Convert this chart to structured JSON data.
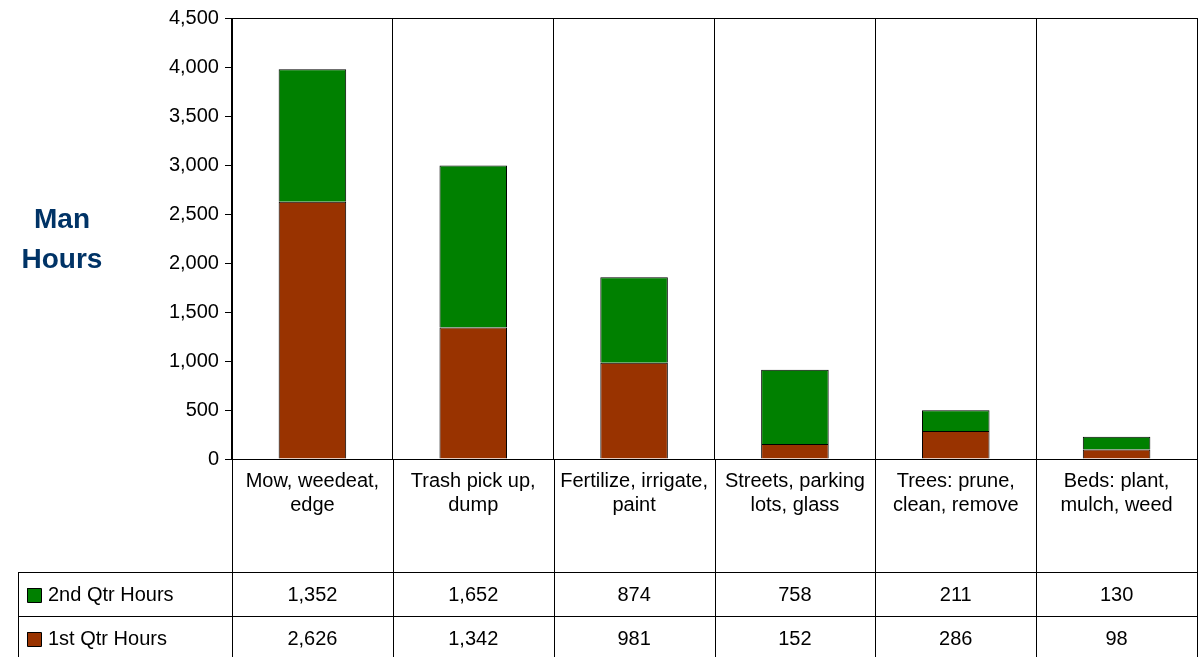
{
  "chart_data": {
    "type": "bar",
    "stacked": true,
    "ylabel": "Man Hours",
    "categories": [
      "Mow, weedeat, edge",
      "Trash pick up, dump",
      "Fertilize, irrigate, paint",
      "Streets, parking lots, glass",
      "Trees: prune, clean, remove",
      "Beds: plant, mulch, weed"
    ],
    "series": [
      {
        "name": "1st Qtr Hours",
        "color": "#993300",
        "values": [
          2626,
          1342,
          981,
          152,
          286,
          98
        ],
        "value_labels": [
          "2,626",
          "1,342",
          "981",
          "152",
          "286",
          "98"
        ]
      },
      {
        "name": "2nd Qtr Hours",
        "color": "#008000",
        "values": [
          1352,
          1652,
          874,
          758,
          211,
          130
        ],
        "value_labels": [
          "1,352",
          "1,652",
          "874",
          "758",
          "211",
          "130"
        ]
      }
    ],
    "ylim": [
      0,
      4500
    ],
    "yticks": [
      0,
      500,
      {
        "value": 1000,
        "label": "1,000"
      },
      {
        "value": 1500,
        "label": "1,500"
      },
      {
        "value": 2000,
        "label": "2,000"
      },
      {
        "value": 2500,
        "label": "2,500"
      },
      {
        "value": 3000,
        "label": "3,000"
      },
      {
        "value": 3500,
        "label": "3,500"
      },
      {
        "value": 4000,
        "label": "4,000"
      },
      {
        "value": 4500,
        "label": "4,500"
      }
    ],
    "grid": "x",
    "legend": "bottom"
  }
}
